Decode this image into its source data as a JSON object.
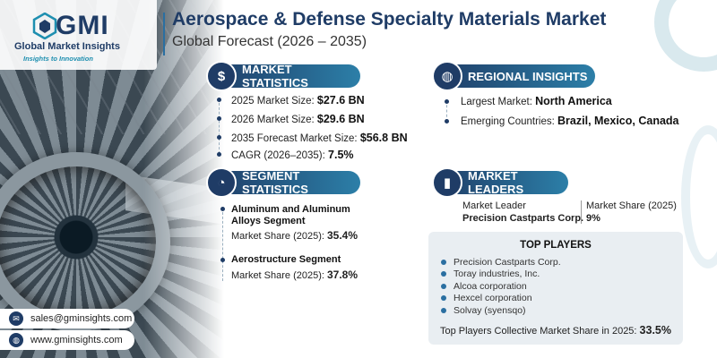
{
  "header": {
    "logo_text": "GMI",
    "logo_name": "Global Market Insights",
    "logo_tagline": "Insights to Innovation",
    "title": "Aerospace & Defense Specialty Materials Market",
    "subtitle": "Global Forecast (2026 – 2035)"
  },
  "market_statistics": {
    "heading": "MARKET STATISTICS",
    "icon": "globe-dollar-icon",
    "items": [
      {
        "label": "2025 Market Size: ",
        "value": "$27.6 BN"
      },
      {
        "label": "2026 Market Size: ",
        "value": "$29.6 BN"
      },
      {
        "label": "2035 Forecast Market Size: ",
        "value": "$56.8 BN"
      },
      {
        "label": "CAGR (2026–2035): ",
        "value": "7.5%"
      }
    ]
  },
  "regional_insights": {
    "heading": "REGIONAL INSIGHTS",
    "icon": "globe-icon",
    "items": [
      {
        "label": "Largest Market: ",
        "value": "North America"
      },
      {
        "label": "Emerging Countries: ",
        "value": "Brazil, Mexico, Canada"
      }
    ]
  },
  "segment_statistics": {
    "heading": "SEGMENT STATISTICS",
    "icon": "segment-chart-icon",
    "items": [
      {
        "title": "Aluminum and Aluminum Alloys Segment",
        "share_label": "Market Share (2025): ",
        "share": "35.4%"
      },
      {
        "title": "Aerostructure Segment",
        "share_label": "Market Share (2025): ",
        "share": "37.8%"
      }
    ]
  },
  "market_leaders": {
    "heading": "MARKET LEADERS",
    "icon": "bar-chart-icon",
    "leader_label": "Market Leader",
    "leader": "Precision Castparts Corp.",
    "share_label": "Market Share (2025)",
    "share": "9%"
  },
  "top_players": {
    "heading": "TOP PLAYERS",
    "players": [
      "Precision Castparts Corp.",
      "Toray industries, Inc.",
      "Alcoa corporation",
      "Hexcel corporation",
      "Solvay (syensqo)"
    ],
    "collective_label": "Top Players Collective Market Share in 2025: ",
    "collective_value": "33.5%"
  },
  "contacts": {
    "email": "sales@gminsights.com",
    "website": "www.gminsights.com",
    "email_icon": "mail-icon",
    "web_icon": "globe-icon"
  },
  "colors": {
    "primary": "#1f3c66",
    "accent": "#2c7fa8"
  }
}
